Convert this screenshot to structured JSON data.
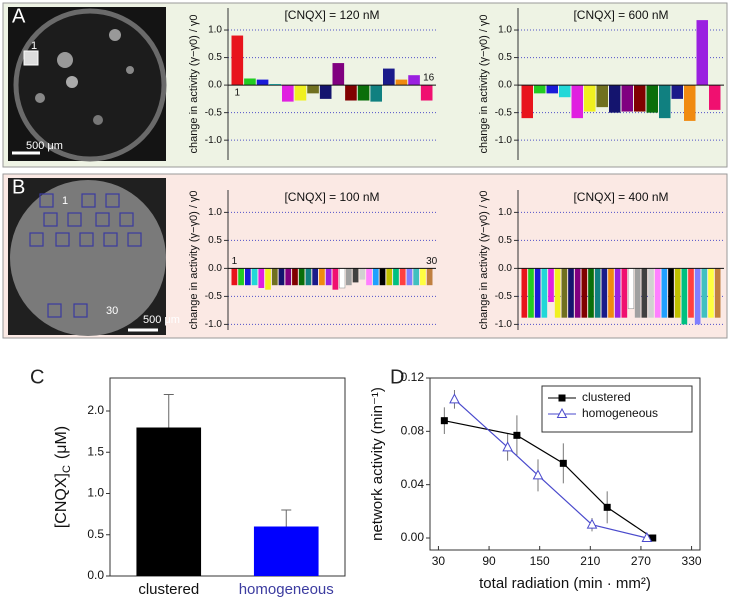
{
  "panels": [
    {
      "label": "A",
      "image_labels": [
        "1",
        "500 μm"
      ]
    },
    {
      "label": "B",
      "image_labels": [
        "1",
        "30",
        "500 μm"
      ]
    },
    {
      "label": "C"
    },
    {
      "label": "D"
    }
  ],
  "chart_data": [
    {
      "type": "bar",
      "title": "[CNQX] = 120 nM",
      "ylabel": "change in activity  (γ−γ0) / γ0",
      "categories": [
        "1",
        null,
        null,
        null,
        null,
        null,
        null,
        null,
        null,
        null,
        null,
        null,
        null,
        null,
        null,
        "16"
      ],
      "values": [
        0.9,
        0.12,
        0.1,
        0.02,
        -0.3,
        -0.28,
        -0.15,
        -0.25,
        0.4,
        -0.28,
        -0.28,
        -0.3,
        0.3,
        0.1,
        0.18,
        -0.28
      ],
      "colors": [
        "#e8141c",
        "#22cc22",
        "#1a1ad8",
        "#22d8d8",
        "#e020e0",
        "#f0f020",
        "#707020",
        "#14146e",
        "#800080",
        "#800000",
        "#0a6e0a",
        "#108080",
        "#1a1a8a",
        "#f08a10",
        "#9a20e0",
        "#f01070"
      ],
      "ylim": [
        -1.36,
        1.4
      ],
      "yticks": [
        {
          "value": -1,
          "label": "-1.0"
        },
        {
          "value": -0.5,
          "label": "-0.5"
        },
        {
          "value": 0,
          "label": "0.0"
        },
        {
          "value": 0.5,
          "label": "0.5"
        },
        {
          "value": 1,
          "label": "1.0"
        }
      ],
      "grid": true
    },
    {
      "type": "bar",
      "title": "[CNQX] = 600 nM",
      "ylabel": "change in activity  (γ−γ0) / γ0",
      "values": [
        -0.6,
        -0.15,
        -0.15,
        -0.22,
        -0.6,
        -0.48,
        -0.4,
        -0.5,
        -0.48,
        -0.48,
        -0.5,
        -0.6,
        -0.25,
        -0.65,
        1.18,
        -0.45
      ],
      "colors": [
        "#e8141c",
        "#22cc22",
        "#1a1ad8",
        "#22d8d8",
        "#e020e0",
        "#f0f020",
        "#707020",
        "#14146e",
        "#800080",
        "#800000",
        "#0a6e0a",
        "#108080",
        "#1a1a8a",
        "#f08a10",
        "#9a20e0",
        "#f01070"
      ],
      "ylim": [
        -1.36,
        1.4
      ],
      "yticks": [
        {
          "value": -1,
          "label": "-1.0"
        },
        {
          "value": -0.5,
          "label": "-0.5"
        },
        {
          "value": 0,
          "label": "0.0"
        },
        {
          "value": 0.5,
          "label": "0.5"
        },
        {
          "value": 1,
          "label": "1.0"
        }
      ],
      "grid": true
    },
    {
      "type": "bar",
      "title": "[CNQX] = 100 nM",
      "ylabel": "change in activity  (γ−γ0) / γ0",
      "categories": [
        "1",
        null,
        null,
        null,
        null,
        null,
        null,
        null,
        null,
        null,
        null,
        null,
        null,
        null,
        null,
        null,
        null,
        null,
        null,
        null,
        null,
        null,
        null,
        null,
        null,
        null,
        null,
        null,
        null,
        "30"
      ],
      "values": [
        -0.3,
        -0.3,
        -0.3,
        -0.3,
        -0.35,
        -0.38,
        -0.3,
        -0.3,
        -0.3,
        -0.3,
        -0.3,
        -0.3,
        -0.3,
        -0.3,
        -0.3,
        -0.38,
        -0.35,
        -0.3,
        -0.25,
        -0.2,
        -0.3,
        -0.3,
        -0.3,
        -0.3,
        -0.3,
        -0.3,
        -0.3,
        -0.3,
        -0.3,
        -0.3
      ],
      "colors": [
        "#e8141c",
        "#22cc22",
        "#1a1ad8",
        "#22d8d8",
        "#e020e0",
        "#f0f020",
        "#707020",
        "#14146e",
        "#800080",
        "#800000",
        "#0a6e0a",
        "#108080",
        "#1a1a8a",
        "#f08a10",
        "#9a20e0",
        "#f01070",
        "#ffffff",
        "#a0a0a0",
        "#404040",
        "#d0d0d0",
        "#ff80ff",
        "#20a0ff",
        "#000000",
        "#c0c000",
        "#00c080",
        "#ff4040",
        "#8080ff",
        "#40c0c0",
        "#ffff40",
        "#c08040"
      ],
      "ylim": [
        -1.1,
        1.4
      ],
      "yticks": [
        {
          "value": -1,
          "label": "-1.0"
        },
        {
          "value": -0.5,
          "label": "-0.5"
        },
        {
          "value": 0,
          "label": "0.0"
        },
        {
          "value": 0.5,
          "label": "0.5"
        },
        {
          "value": 1,
          "label": "1.0"
        }
      ],
      "grid": true
    },
    {
      "type": "bar",
      "title": "[CNQX] = 400 nM",
      "ylabel": "change in activity  (γ−γ0) / γ0",
      "values": [
        -0.88,
        -0.88,
        -0.88,
        -0.88,
        -0.6,
        -0.88,
        -0.88,
        -0.88,
        -0.88,
        -0.88,
        -0.88,
        -0.88,
        -0.88,
        -0.88,
        -0.88,
        -0.88,
        -0.72,
        -0.88,
        -0.88,
        -0.88,
        -0.88,
        -0.88,
        -0.88,
        -0.88,
        -1.0,
        -0.88,
        -1.0,
        -0.88,
        -0.88,
        -0.88
      ],
      "colors": [
        "#e8141c",
        "#22cc22",
        "#1a1ad8",
        "#22d8d8",
        "#e020e0",
        "#f0f020",
        "#707020",
        "#14146e",
        "#800080",
        "#800000",
        "#0a6e0a",
        "#108080",
        "#1a1a8a",
        "#f08a10",
        "#9a20e0",
        "#f01070",
        "#ffffff",
        "#a0a0a0",
        "#404040",
        "#d0d0d0",
        "#ff80ff",
        "#20a0ff",
        "#000000",
        "#c0c000",
        "#00c080",
        "#ff4040",
        "#8080ff",
        "#40c0c0",
        "#ffff40",
        "#c08040"
      ],
      "ylim": [
        -1.1,
        1.4
      ],
      "yticks": [
        {
          "value": -1,
          "label": "-1.0"
        },
        {
          "value": -0.5,
          "label": "-0.5"
        },
        {
          "value": 0,
          "label": "0.0"
        },
        {
          "value": 0.5,
          "label": "0.5"
        },
        {
          "value": 1,
          "label": "1.0"
        }
      ],
      "grid": true
    },
    {
      "type": "bar",
      "ylabel": "[CNQX]",
      "ylabel_sub": "C",
      "ylabel_unit": "(μM)",
      "categories": [
        "clustered",
        "homogeneous"
      ],
      "label_colors": [
        "#111111",
        "#3c3ca0"
      ],
      "values": [
        1.8,
        0.6
      ],
      "errors": [
        0.4,
        0.2
      ],
      "colors": [
        "#000000",
        "#0000ff"
      ],
      "ylim": [
        0,
        2.4
      ],
      "yticks": [
        {
          "value": 0,
          "label": "0.0"
        },
        {
          "value": 0.5,
          "label": "0.5"
        },
        {
          "value": 1,
          "label": "1.0"
        },
        {
          "value": 1.5,
          "label": "1.5"
        },
        {
          "value": 2,
          "label": "2.0"
        }
      ],
      "grid": false
    },
    {
      "type": "line",
      "xlabel": "total radiation (min · mm²)",
      "ylabel": "network activity (min⁻¹)",
      "series": [
        {
          "name": "clustered",
          "color": "#000000",
          "marker": "square",
          "x": [
            37,
            123,
            178,
            230,
            284
          ],
          "values": [
            0.088,
            0.077,
            0.056,
            0.023,
            0.0
          ],
          "errors": [
            0.01,
            0.015,
            0.015,
            0.012,
            0.0
          ]
        },
        {
          "name": "homogeneous",
          "color": "#4a4acc",
          "marker": "triangle",
          "x": [
            49,
            112,
            148,
            212,
            277
          ],
          "values": [
            0.104,
            0.068,
            0.047,
            0.01,
            0.0
          ],
          "errors": [
            0.007,
            0.01,
            0.012,
            0.005,
            0.0
          ]
        }
      ],
      "xlim": [
        20,
        340
      ],
      "xticks": [
        30,
        90,
        150,
        210,
        270,
        330
      ],
      "ylim": [
        -0.009,
        0.12
      ],
      "yticks": [
        {
          "value": 0,
          "label": "0.00"
        },
        {
          "value": 0.04,
          "label": "0.04"
        },
        {
          "value": 0.08,
          "label": "0.08"
        },
        {
          "value": 0.12,
          "label": "0.12"
        }
      ],
      "legend": "upper right",
      "grid": false
    }
  ]
}
